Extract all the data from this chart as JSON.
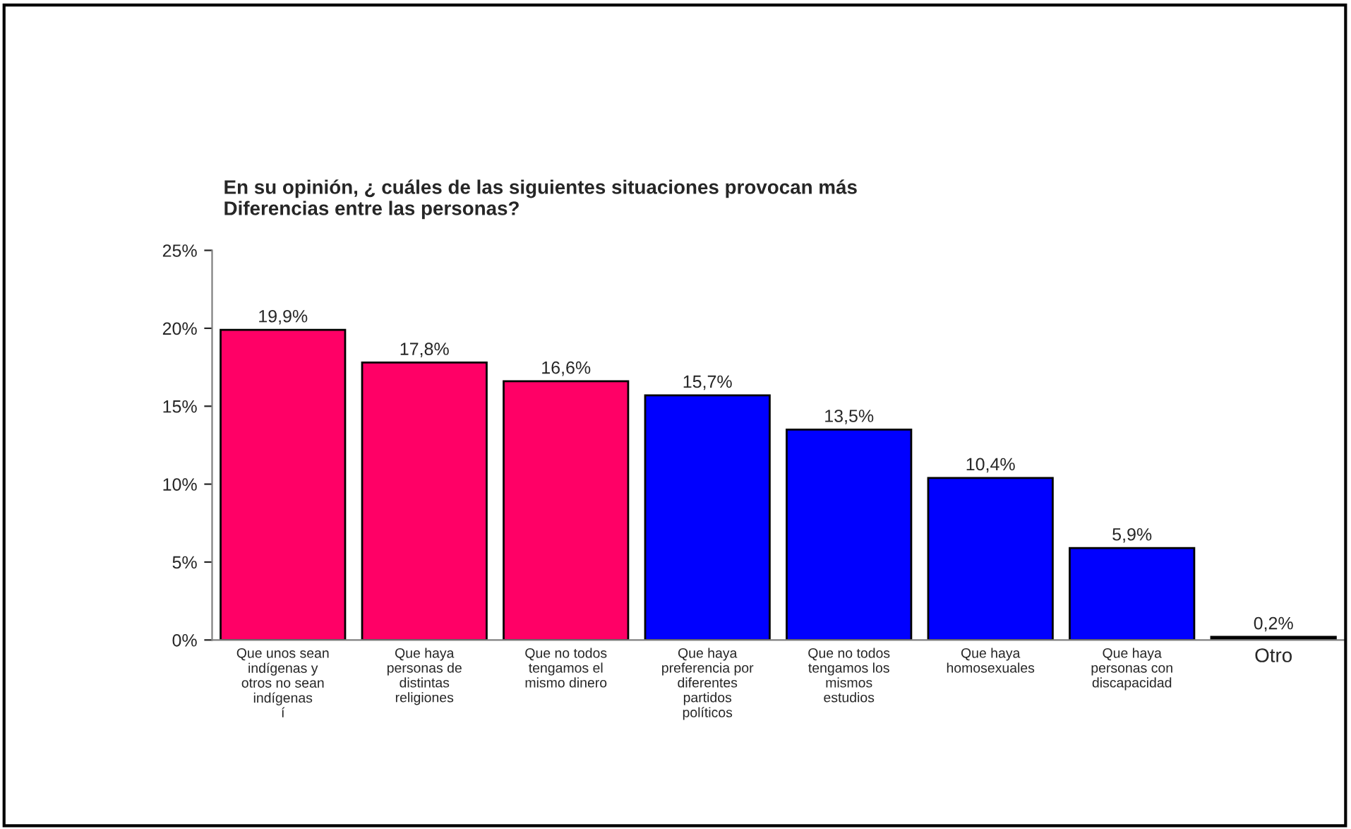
{
  "chart_data": {
    "type": "bar",
    "title": "En su opinión, ¿ cuáles de las siguientes situaciones provocan más\nDiferencias entre las personas?",
    "categories": [
      "Que unos sean\nindígenas y\notros no sean\nindígenas\ní",
      "Que haya\npersonas de\ndistintas\nreligiones",
      "Que no todos\ntengamos el\nmismo dinero",
      "Que haya\npreferencia por\ndiferentes\npartidos\npolíticos",
      "Que no todos\ntengamos los\nmismos\nestudios",
      "Que haya\nhomosexuales",
      "Que haya\npersonas con\ndiscapacidad",
      "Otro"
    ],
    "values": [
      19.9,
      17.8,
      16.6,
      15.7,
      13.5,
      10.4,
      5.9,
      0.2
    ],
    "colors": [
      "#ff0066",
      "#ff0066",
      "#ff0066",
      "#0000ff",
      "#0000ff",
      "#0000ff",
      "#0000ff",
      "#000000"
    ],
    "value_labels": [
      "19,9%",
      "17,8%",
      "16,6%",
      "15,7%",
      "13,5%",
      "10,4%",
      "5,9%",
      "0,2%"
    ],
    "ylim": [
      0,
      25
    ],
    "yticks": [
      {
        "value": 0,
        "label": "0%"
      },
      {
        "value": 5,
        "label": "5%"
      },
      {
        "value": 10,
        "label": "10%"
      },
      {
        "value": 15,
        "label": "15%"
      },
      {
        "value": 20,
        "label": "20%"
      },
      {
        "value": 25,
        "label": "25%"
      }
    ],
    "grid": false,
    "legend": false
  }
}
